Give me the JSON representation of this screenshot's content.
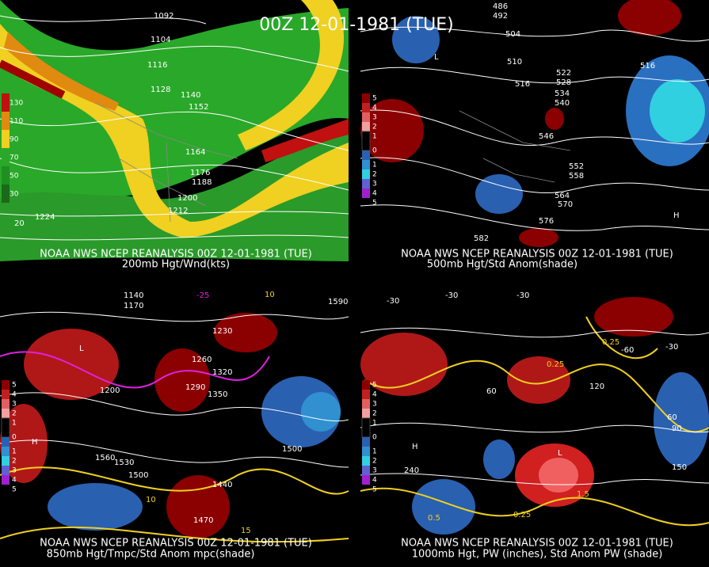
{
  "title": "00Z 12-01-1981 (TUE)",
  "panels": [
    {
      "caption": "NOAA NWS NCEP REANALYSIS 00Z 12-01-1981 (TUE)",
      "subcaption": "200mb Hgt/Wnd(kts)",
      "legend": [
        "130",
        "110",
        "90",
        "70",
        "50",
        "30"
      ],
      "labels": [
        "1092",
        "1104",
        "1116",
        "1128",
        "1140",
        "1152",
        "1164",
        "1176",
        "1188",
        "1200",
        "1212",
        "1224",
        "20"
      ]
    },
    {
      "caption": "NOAA NWS NCEP REANALYSIS 00Z 12-01-1981 (TUE)",
      "subcaption": "500mb Hgt/Std Anom(shade)",
      "legend": [
        "5",
        "4",
        "3",
        "2",
        "1",
        "0",
        "1",
        "2",
        "3",
        "4",
        "5"
      ],
      "labels": [
        "486",
        "492",
        "504",
        "510",
        "516",
        "522",
        "528",
        "534",
        "540",
        "546",
        "552",
        "558",
        "564",
        "570",
        "576",
        "582",
        "516",
        "L",
        "H"
      ]
    },
    {
      "caption": "NOAA NWS NCEP REANALYSIS 00Z 12-01-1981 (TUE)",
      "subcaption": "850mb Hgt/Tmpc/Std Anom mpc(shade)",
      "legend": [
        "5",
        "4",
        "3",
        "2",
        "1",
        "0",
        "1",
        "2",
        "3",
        "4",
        "5"
      ],
      "labels": [
        "1140",
        "1170",
        "-25",
        "10",
        "1590",
        "1230",
        "1260",
        "1290",
        "1320",
        "1350",
        "1200",
        "1500",
        "1560",
        "1530",
        "1500",
        "1440",
        "1470",
        "10",
        "15",
        "H",
        "L"
      ]
    },
    {
      "caption": "NOAA NWS NCEP REANALYSIS 00Z 12-01-1981 (TUE)",
      "subcaption": "1000mb Hgt, PW (inches), Std Anom PW (shade)",
      "legend": [
        "5",
        "4",
        "3",
        "2",
        "1",
        "0",
        "1",
        "2",
        "3",
        "4",
        "5"
      ],
      "labels": [
        "-30",
        "-30",
        "-30",
        "0.25",
        "0.25",
        "-60",
        "-30",
        "60",
        "120",
        "90",
        "60",
        "150",
        "240",
        "0.5",
        "0.25",
        "1.5",
        "H",
        "L"
      ]
    }
  ]
}
